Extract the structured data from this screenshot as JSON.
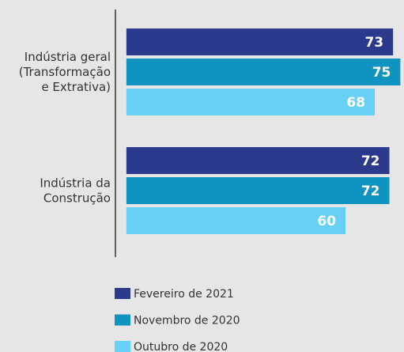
{
  "chart_data": {
    "type": "barh",
    "categories": [
      [
        "Indústria geral",
        "(Transformação",
        "e Extrativa)"
      ],
      [
        "Indústria da",
        "Construção"
      ]
    ],
    "series": [
      {
        "name": "Fevereiro de 2021",
        "color": "#2b3a8c",
        "values": [
          73,
          72
        ]
      },
      {
        "name": "Novembro de 2020",
        "color": "#0f93c0",
        "values": [
          75,
          72
        ]
      },
      {
        "name": "Outubro de 2020",
        "color": "#66d0f5",
        "values": [
          68,
          60
        ]
      }
    ],
    "xlim": [
      -3,
      76
    ]
  }
}
